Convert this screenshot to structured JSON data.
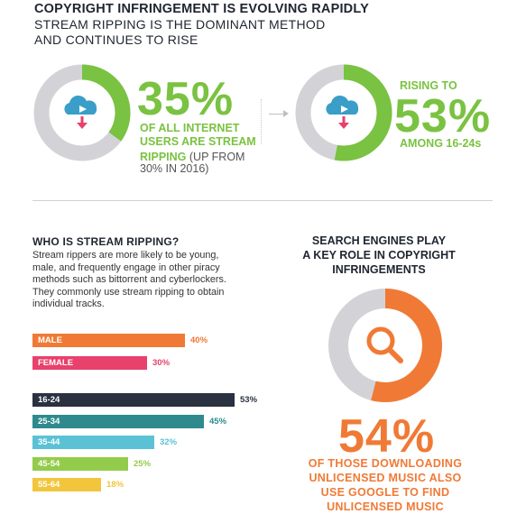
{
  "header": {
    "title": "COPYRIGHT INFRINGEMENT IS EVOLVING RAPIDLY",
    "subtitle_line1": "STREAM RIPPING IS THE DOMINANT METHOD",
    "subtitle_line2": "AND CONTINUES TO RISE"
  },
  "stat1": {
    "value": "35%",
    "line1": "OF ALL INTERNET",
    "line2": "USERS ARE STREAM",
    "line3_bold": "RIPPING",
    "line3_rest": " (UP FROM",
    "line4": "30% IN 2016)",
    "fraction": 0.35,
    "icon": "cloud-download-icon"
  },
  "stat2": {
    "prefix": "RISING TO",
    "value": "53%",
    "suffix": "AMONG 16-24s",
    "fraction": 0.53,
    "icon": "cloud-download-icon"
  },
  "who": {
    "title": "WHO IS STREAM RIPPING?",
    "lines": [
      "Stream rippers are more likely to be young,",
      "male, and frequently engage in other piracy",
      "methods such as bittorrent and cyberlockers.",
      "They commonly use stream ripping to obtain",
      "individual tracks."
    ]
  },
  "search": {
    "title_lines": [
      "SEARCH ENGINES PLAY",
      "A KEY ROLE IN COPYRIGHT",
      "INFRINGEMENTS"
    ],
    "value": "54%",
    "fraction": 0.54,
    "icon": "magnifier-icon",
    "caption_lines": [
      "OF THOSE DOWNLOADING",
      "UNLICENSED MUSIC ALSO",
      "USE GOOGLE TO FIND",
      "UNLICENSED MUSIC"
    ]
  },
  "colors": {
    "green": "#7ac241",
    "grey_ring": "#d3d3d7",
    "orange": "#f07a35",
    "pink": "#e8416b",
    "navy": "#2a3140",
    "teal": "#2e8a8d",
    "lightblue": "#5bc2d6",
    "lightgreen": "#93cc4a",
    "yellow": "#f2c53c",
    "icon_blue": "#3a9ec8"
  },
  "chart_data": [
    {
      "type": "bar",
      "orientation": "horizontal",
      "categories": [
        "MALE",
        "FEMALE"
      ],
      "values": [
        40,
        30
      ],
      "value_labels": [
        "40%",
        "30%"
      ],
      "colors": [
        "#f07a35",
        "#e8416b"
      ],
      "xlim": [
        0,
        53
      ]
    },
    {
      "type": "bar",
      "orientation": "horizontal",
      "categories": [
        "16-24",
        "25-34",
        "35-44",
        "45-54",
        "55-64"
      ],
      "values": [
        53,
        45,
        32,
        25,
        18
      ],
      "value_labels": [
        "53%",
        "45%",
        "32%",
        "25%",
        "18%"
      ],
      "colors": [
        "#2a3140",
        "#2e8a8d",
        "#5bc2d6",
        "#93cc4a",
        "#f2c53c"
      ],
      "xlim": [
        0,
        53
      ]
    }
  ]
}
